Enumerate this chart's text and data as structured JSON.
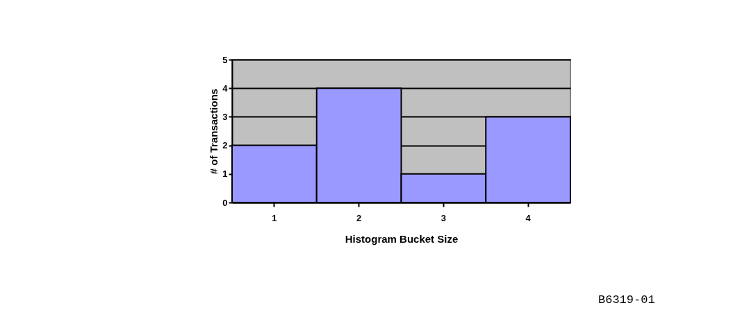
{
  "chart_data": {
    "type": "bar",
    "xlabel": "Histogram Bucket Size",
    "ylabel": "# of Transactions",
    "categories": [
      "1",
      "2",
      "3",
      "4"
    ],
    "values": [
      2,
      4,
      1,
      3
    ],
    "color": "#9999ff",
    "ylim": [
      0,
      5
    ],
    "yticks": [
      0,
      1,
      2,
      3,
      4,
      5
    ],
    "grid": "y",
    "annotations": [
      "B6319-01"
    ]
  }
}
